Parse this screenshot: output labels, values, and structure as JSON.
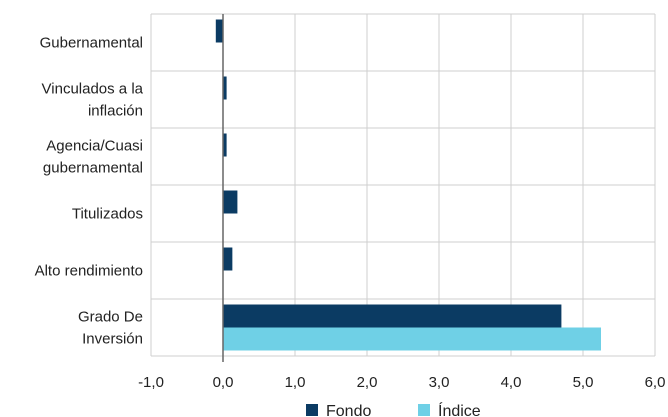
{
  "chart_data": {
    "type": "bar",
    "orientation": "horizontal",
    "categories": [
      [
        "Gubernamental"
      ],
      [
        "Vinculados a la",
        "inflación"
      ],
      [
        "Agencia/Cuasi",
        "gubernamental"
      ],
      [
        "Titulizados"
      ],
      [
        "Alto rendimiento"
      ],
      [
        "Grado De",
        "Inversión"
      ]
    ],
    "series": [
      {
        "name": "Fondo",
        "color": "#0b3b63",
        "values": [
          -0.1,
          0.05,
          0.05,
          0.2,
          0.13,
          4.7
        ]
      },
      {
        "name": "Índice",
        "color": "#6fd0e6",
        "values": [
          0.0,
          0.0,
          0.0,
          0.0,
          0.0,
          5.25
        ]
      }
    ],
    "xlim": [
      -1,
      6
    ],
    "xticks": [
      -1,
      0,
      1,
      2,
      3,
      4,
      5,
      6
    ],
    "xtick_labels": [
      "-1,0",
      "0,0",
      "1,0",
      "2,0",
      "3,0",
      "4,0",
      "5,0",
      "6,0"
    ],
    "grid": true,
    "legend": "bottom"
  }
}
